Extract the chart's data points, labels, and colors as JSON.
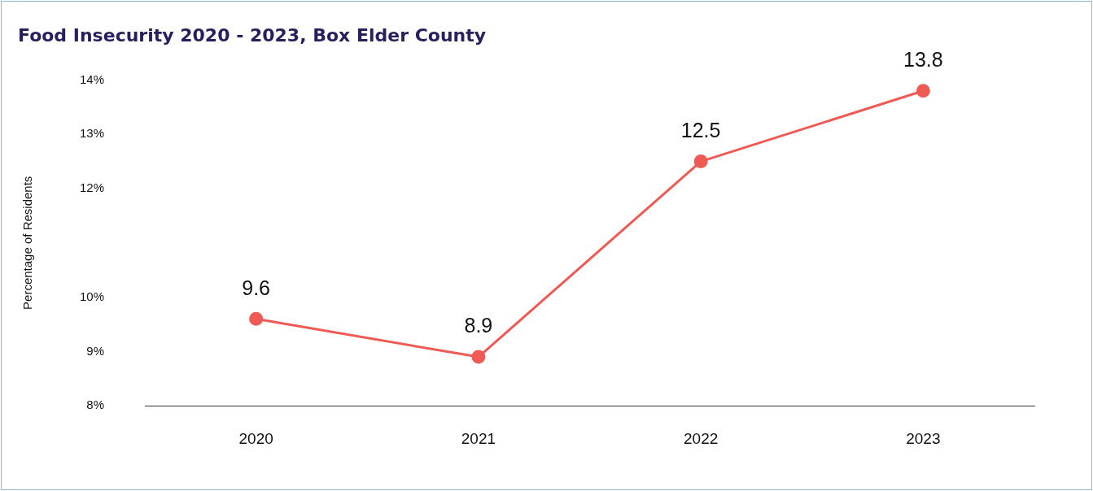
{
  "chart_data": {
    "type": "line",
    "title": "Food Insecurity 2020 - 2023, Box Elder County",
    "ylabel": "Percentage of Residents",
    "categories": [
      "2020",
      "2021",
      "2022",
      "2023"
    ],
    "series": [
      {
        "color": "#ef5a55",
        "values": [
          9.6,
          8.9,
          12.5,
          13.8
        ]
      }
    ],
    "ylim": [
      8,
      14
    ],
    "yticks": [
      {
        "value": 8,
        "label": "8%"
      },
      {
        "value": 9,
        "label": "9%"
      },
      {
        "value": 10,
        "label": "10%"
      },
      {
        "value": 12,
        "label": "12%"
      },
      {
        "value": 13,
        "label": "13%"
      },
      {
        "value": 14,
        "label": "14%"
      }
    ],
    "grid": false,
    "legend": false,
    "marker": "circle",
    "line_style": "solid",
    "data_labels": true
  }
}
